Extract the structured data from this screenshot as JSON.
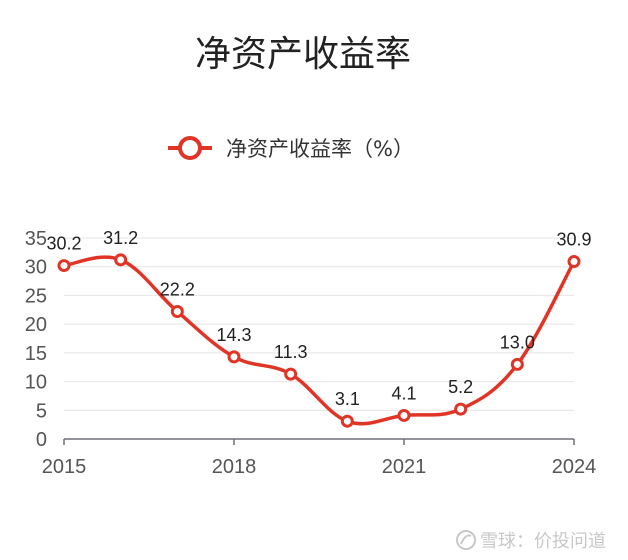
{
  "chart_data": {
    "type": "line",
    "title": "净资产收益率",
    "x": [
      2015,
      2016,
      2017,
      2018,
      2019,
      2020,
      2021,
      2022,
      2023,
      2024
    ],
    "x_tick_labels": [
      "2015",
      "2018",
      "2021",
      "2024"
    ],
    "series": [
      {
        "name": "净资产收益率（%）",
        "values": [
          30.2,
          31.2,
          22.2,
          14.3,
          11.3,
          3.1,
          4.1,
          5.2,
          13.0,
          30.9
        ],
        "labels": [
          "30.2",
          "31.2",
          "22.2",
          "14.3",
          "11.3",
          "3.1",
          "4.1",
          "5.2",
          "13.0",
          "30.9"
        ]
      }
    ],
    "ylim": [
      0,
      35
    ],
    "y_ticks": [
      "0",
      "5",
      "10",
      "15",
      "20",
      "25",
      "30",
      "35"
    ],
    "grid": true,
    "legend": "top-center",
    "line_color": "#e03526"
  },
  "watermark": {
    "icon": "snowball-logo-icon",
    "text": "雪球：价投问道"
  }
}
